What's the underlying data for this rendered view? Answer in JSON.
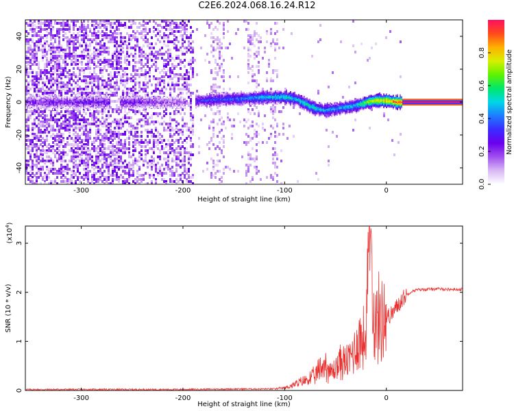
{
  "title": "C2E6.2024.068.16.24.R12",
  "chart_data": [
    {
      "type": "heatmap",
      "xlabel": "Height of straight line (km)",
      "ylabel": "Frequency (Hz)",
      "xlim": [
        -355,
        75
      ],
      "ylim": [
        -50,
        50
      ],
      "xticks": [
        -300,
        -200,
        -100,
        0
      ],
      "yticks": [
        -40,
        -20,
        0,
        20,
        40
      ],
      "colorbar": {
        "label": "Normalized spectral amplitude",
        "range": [
          0.0,
          1.0
        ],
        "ticks": [
          0.0,
          0.2,
          0.4,
          0.6,
          0.8
        ],
        "tick_labels": [
          "0.0",
          "0.2",
          "0.4",
          "0.6",
          "0.8"
        ],
        "colormap": [
          "#ffffff",
          "#d9b8f5",
          "#a050ee",
          "#6a00ee",
          "#3b2bff",
          "#1e7cff",
          "#00d6e8",
          "#00e86a",
          "#60f200",
          "#d8f000",
          "#ffb000",
          "#ff4a1a",
          "#ff1060"
        ]
      },
      "ridge": {
        "x": [
          -355,
          -300,
          -250,
          -200,
          -185,
          -150,
          -120,
          -100,
          -90,
          -80,
          -70,
          -60,
          -50,
          -40,
          -30,
          -20,
          -10,
          0,
          10,
          75
        ],
        "freq": [
          0,
          0,
          0,
          0,
          1,
          2,
          3,
          3,
          2,
          -1,
          -4,
          -5,
          -4,
          -3,
          -2,
          0,
          1,
          1,
          0,
          0
        ],
        "amplitude": [
          0.2,
          0.25,
          0.25,
          0.15,
          0.35,
          0.4,
          0.5,
          0.55,
          0.5,
          0.55,
          0.55,
          0.45,
          0.45,
          0.5,
          0.5,
          0.75,
          0.8,
          0.85,
          0.95,
          1.0
        ]
      }
    },
    {
      "type": "line",
      "xlabel": "Height of straight line (km)",
      "ylabel": "SNR (10 * v/v)",
      "yscale_label": "(x10",
      "yscale_exp": "4",
      "yscale_close": ")",
      "xlim": [
        -355,
        75
      ],
      "ylim": [
        0,
        3.35
      ],
      "xticks": [
        -300,
        -200,
        -100,
        0
      ],
      "yticks": [
        0,
        1,
        2,
        3
      ],
      "grid": false,
      "series": [
        {
          "color": "#e8312f",
          "x": [
            -355,
            -300,
            -250,
            -200,
            -150,
            -110,
            -100,
            -90,
            -80,
            -70,
            -65,
            -60,
            -55,
            -50,
            -45,
            -40,
            -35,
            -30,
            -25,
            -20,
            -18,
            -15,
            -12,
            -10,
            -5,
            0,
            5,
            10,
            15,
            20,
            25,
            30,
            40,
            50,
            60,
            75
          ],
          "y": [
            0.02,
            0.02,
            0.02,
            0.02,
            0.03,
            0.03,
            0.05,
            0.12,
            0.2,
            0.3,
            0.45,
            0.55,
            0.35,
            0.45,
            0.6,
            0.55,
            0.7,
            0.9,
            1.1,
            1.0,
            2.4,
            3.35,
            1.3,
            1.4,
            1.45,
            1.5,
            1.55,
            1.7,
            1.85,
            1.95,
            2.02,
            2.05,
            2.06,
            2.07,
            2.06,
            2.06
          ]
        }
      ]
    }
  ]
}
